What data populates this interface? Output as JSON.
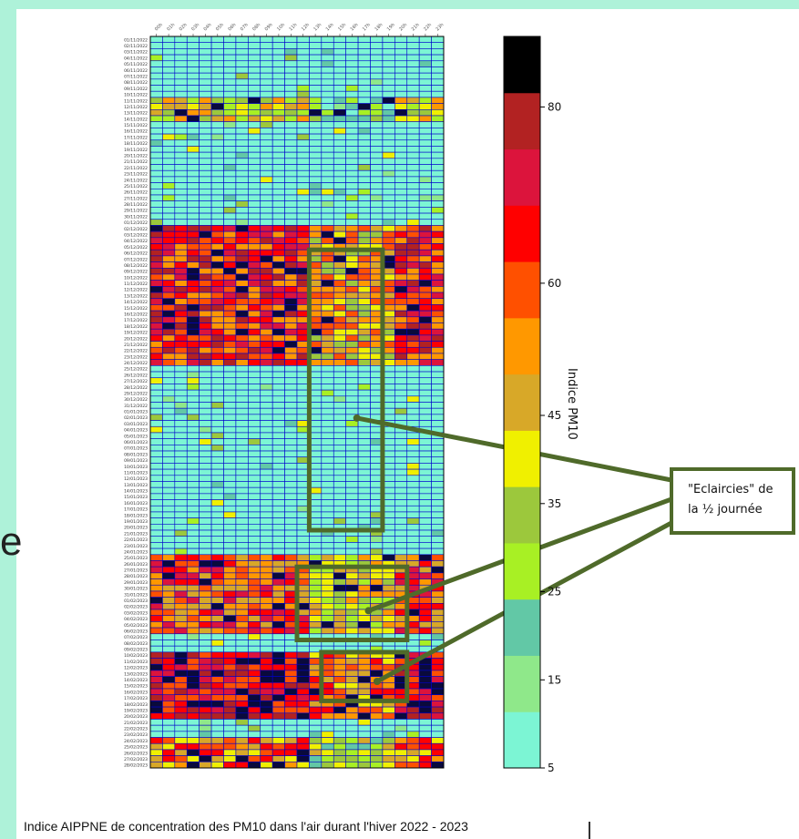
{
  "slide_fragment": "e",
  "caption": "Indice AIPPNE de concentration des PM10 dans l'air durant l'hiver 2022 - 2023",
  "callout": {
    "line1": "\"Eclaircies\" de",
    "line2": "la ½ journée"
  },
  "chart_data": {
    "type": "heatmap",
    "rows": 120,
    "cols": 24,
    "row_start_date": "01/11/2022",
    "row_end_date": "28/02/2023",
    "colorbar": {
      "label": "Indice PM10",
      "ticks": [
        5,
        15,
        25,
        35,
        45,
        60,
        80
      ],
      "min": 5,
      "max": 88,
      "colors": [
        "#7cf5d4",
        "#8fe88a",
        "#62c8a6",
        "#a8f024",
        "#9cc83c",
        "#f0f000",
        "#d8a828",
        "#ff9800",
        "#ff5000",
        "#ff0000",
        "#dc143c",
        "#b22222",
        "#000000"
      ]
    },
    "highlight_boxes": [
      {
        "row_from": 35,
        "row_to": 81,
        "col_from": 13,
        "col_to": 19
      },
      {
        "row_from": 87,
        "row_to": 99,
        "col_from": 12,
        "col_to": 21
      },
      {
        "row_from": 101,
        "row_to": 109,
        "col_from": 14,
        "col_to": 21
      }
    ]
  }
}
